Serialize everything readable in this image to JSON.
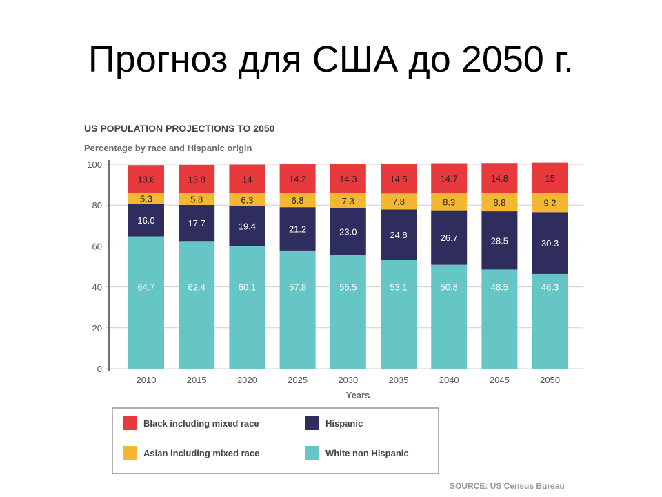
{
  "slide": {
    "title": "Прогноз для США до 2050 г."
  },
  "chart_data": {
    "type": "bar",
    "stacked": true,
    "title": "US POPULATION PROJECTIONS TO 2050",
    "subtitle": "Percentage by race and Hispanic origin",
    "xlabel": "Years",
    "ylabel": "",
    "ylim": [
      0,
      100
    ],
    "yticks": [
      0,
      20,
      40,
      60,
      80,
      100
    ],
    "grid": true,
    "legend_position": "bottom",
    "categories": [
      "2010",
      "2015",
      "2020",
      "2025",
      "2030",
      "2035",
      "2040",
      "2045",
      "2050"
    ],
    "series": [
      {
        "name": "White non Hispanic",
        "color": "#66c6c6",
        "label_color": "light",
        "values": [
          64.7,
          62.4,
          60.1,
          57.8,
          55.5,
          53.1,
          50.8,
          48.5,
          46.3
        ],
        "labels": [
          "64.7",
          "62.4",
          "60.1",
          "57.8",
          "55.5",
          "53.1",
          "50.8",
          "48.5",
          "46.3"
        ]
      },
      {
        "name": "Hispanic",
        "color": "#2f2d5e",
        "label_color": "light",
        "values": [
          16.0,
          17.7,
          19.4,
          21.2,
          23.0,
          24.8,
          26.7,
          28.5,
          30.3
        ],
        "labels": [
          "16.0",
          "17.7",
          "19.4",
          "21.2",
          "23.0",
          "24.8",
          "26.7",
          "28.5",
          "30.3"
        ]
      },
      {
        "name": "Asian including mixed race",
        "color": "#f5b731",
        "label_color": "dark",
        "values": [
          5.3,
          5.8,
          6.3,
          6.8,
          7.3,
          7.8,
          8.3,
          8.8,
          9.2
        ],
        "labels": [
          "5.3",
          "5.8",
          "6.3",
          "6.8",
          "7.3",
          "7.8",
          "8.3",
          "8.8",
          "9.2"
        ]
      },
      {
        "name": "Black including mixed race",
        "color": "#e8393d",
        "label_color": "dark",
        "values": [
          13.6,
          13.8,
          14,
          14.2,
          14.3,
          14.5,
          14.7,
          14.8,
          15
        ],
        "labels": [
          "13.6",
          "13.8",
          "14",
          "14.2",
          "14.3",
          "14.5",
          "14.7",
          "14.8",
          "15"
        ]
      }
    ],
    "legend_order": [
      "Black including mixed race",
      "Hispanic",
      "Asian including mixed race",
      "White non Hispanic"
    ],
    "source": "SOURCE: US Census Bureau"
  }
}
